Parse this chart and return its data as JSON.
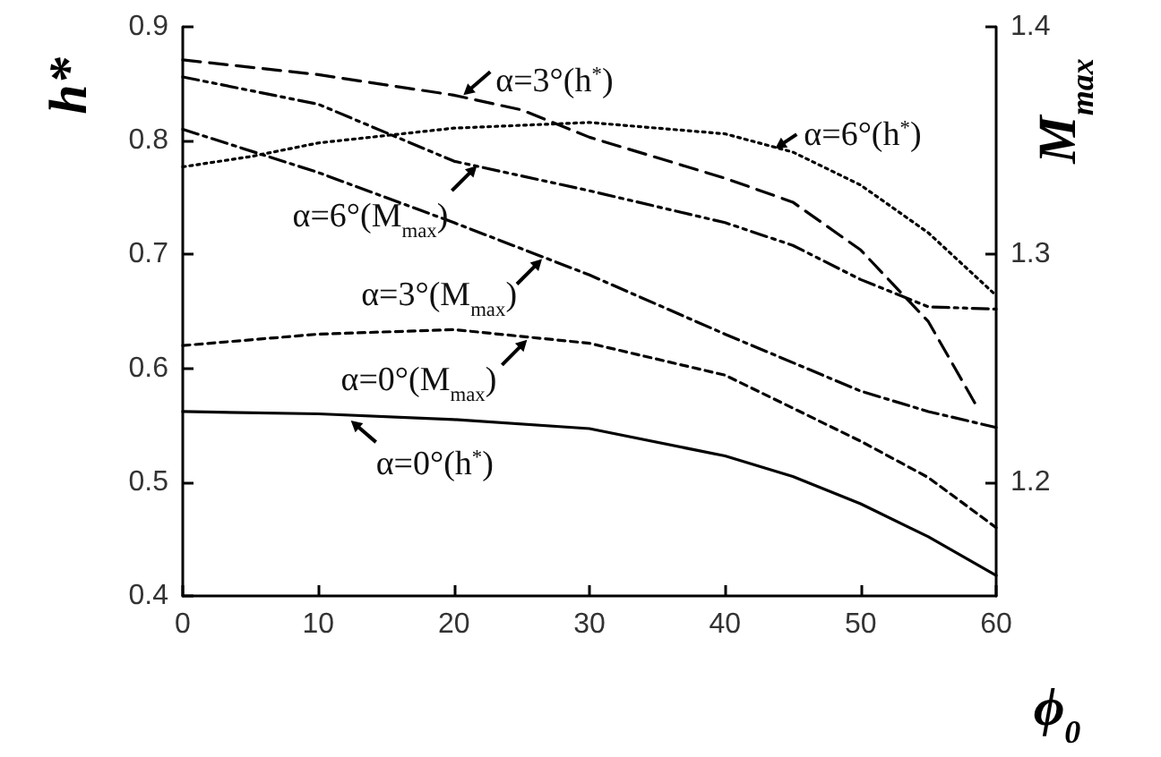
{
  "chart_data": {
    "type": "line",
    "xlabel": "ϕ$_{0}$",
    "ylabel": "h*",
    "y2label": "M$_{max}$",
    "xlim": [
      0,
      60
    ],
    "xticks": [
      0,
      10,
      20,
      30,
      40,
      50,
      60
    ],
    "ylim": [
      0.4,
      0.9
    ],
    "yticks": [
      0.4,
      0.5,
      0.6,
      0.7,
      0.8,
      0.9
    ],
    "y2lim": [
      1.15,
      1.4
    ],
    "y2ticks": [
      1.2,
      1.3,
      1.4
    ],
    "grid": false,
    "marker": "none",
    "series": [
      {
        "color": "#000000",
        "line_style": "solid",
        "x": [
          0,
          10,
          20,
          30,
          40,
          45,
          50,
          55,
          60
        ],
        "values": [
          0.562,
          0.56,
          0.555,
          0.547,
          0.523,
          0.505,
          0.481,
          0.452,
          0.418
        ]
      },
      {
        "color": "#000000",
        "line_style": "dashed",
        "x": [
          0,
          10,
          20,
          25,
          30,
          40,
          45,
          50,
          55,
          58.5
        ],
        "values": [
          0.871,
          0.858,
          0.84,
          0.827,
          0.803,
          0.767,
          0.746,
          0.704,
          0.641,
          0.568
        ]
      },
      {
        "color": "#000000",
        "line_style": "dotted",
        "x": [
          0,
          5,
          10,
          20,
          30,
          40,
          45,
          50,
          55,
          60
        ],
        "values": [
          0.777,
          0.786,
          0.798,
          0.811,
          0.816,
          0.806,
          0.79,
          0.761,
          0.719,
          0.664
        ]
      },
      {
        "color": "#000000",
        "line_style": "dashed",
        "axis": "y2",
        "x": [
          0,
          10,
          20,
          30,
          40,
          50,
          55,
          60
        ],
        "values": [
          1.26,
          1.265,
          1.267,
          1.261,
          1.247,
          1.218,
          1.202,
          1.18
        ]
      },
      {
        "color": "#000000",
        "line_style": "dashed",
        "axis": "y2",
        "x": [
          0,
          10,
          20,
          30,
          40,
          50,
          55,
          60
        ],
        "values": [
          1.355,
          1.336,
          1.314,
          1.291,
          1.265,
          1.24,
          1.231,
          1.224
        ]
      },
      {
        "color": "#000000",
        "line_style": "dashed",
        "axis": "y2",
        "x": [
          0,
          10,
          20,
          30,
          40,
          45,
          50,
          55,
          60
        ],
        "values": [
          1.378,
          1.366,
          1.341,
          1.328,
          1.314,
          1.304,
          1.289,
          1.277,
          1.276
        ]
      }
    ],
    "annotations": [
      {
        "text": "α=3°(h$^{*}$)",
        "x": 20.7,
        "y": 0.84
      },
      {
        "text": "α=6°(h$^{*}$)",
        "x": 43.7,
        "y": 0.793
      },
      {
        "text": "α=6°(M$_{max}$)",
        "x": 21.7,
        "y": 0.778
      },
      {
        "text": "α=3°(M$_{max}$)",
        "x": 26.5,
        "y": 0.696
      },
      {
        "text": "α=0°(M$_{max}$)",
        "x": 25.4,
        "y": 0.625
      },
      {
        "text": "α=0°(h$^{*}$)",
        "x": 12.4,
        "y": 0.554
      }
    ]
  }
}
